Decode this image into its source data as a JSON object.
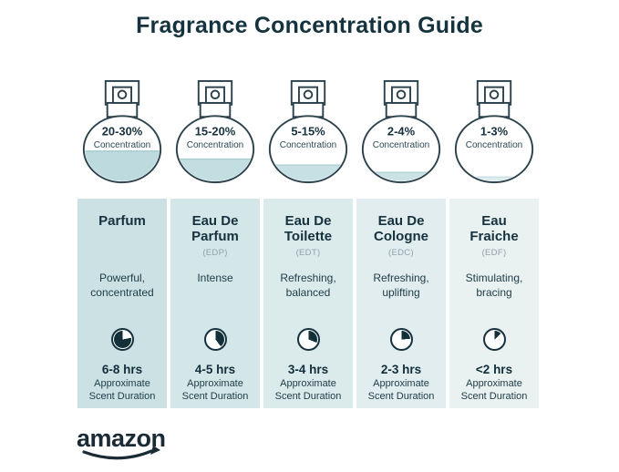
{
  "title": "Fragrance Concentration Guide",
  "concentration_label": "Concentration",
  "brand": {
    "logo_text": "amazon"
  },
  "colors": {
    "title_text": "#15333f",
    "heading_text": "#16323e",
    "abbr_text": "#90a2a9",
    "bottle_outline": "#2c424d",
    "clock_fill": "#122f3a",
    "background": "#ffffff",
    "logo_text": "#1b2b36"
  },
  "columns": [
    {
      "name": "Parfum",
      "abbr": "",
      "description": "Powerful, concentrated",
      "concentration": "20-30%",
      "duration": "6-8 hrs",
      "duration_caption": "Approximate Scent Duration",
      "fill_percent": 48,
      "liquid_color": "#bddbdf",
      "surface_color": "#a6cbd1",
      "column_bg": "#cbe1e4",
      "clock_filled_start": 22,
      "clock_filled_end": 100
    },
    {
      "name": "Eau De Parfum",
      "abbr": "(EDP)",
      "description": "Intense",
      "concentration": "15-20%",
      "duration": "4-5 hrs",
      "duration_caption": "Approximate Scent Duration",
      "fill_percent": 36,
      "liquid_color": "#c2dee1",
      "surface_color": "#abced3",
      "column_bg": "#d3e6e8",
      "clock_filled_start": 0,
      "clock_filled_end": 40
    },
    {
      "name": "Eau De Toilette",
      "abbr": "(EDT)",
      "description": "Refreshing, balanced",
      "concentration": "5-15%",
      "duration": "3-4 hrs",
      "duration_caption": "Approximate Scent Duration",
      "fill_percent": 27,
      "liquid_color": "#c6e0e3",
      "surface_color": "#b0d1d6",
      "column_bg": "#dbeaeb",
      "clock_filled_start": 0,
      "clock_filled_end": 31
    },
    {
      "name": "Eau De Cologne",
      "abbr": "(EDC)",
      "description": "Refreshing, uplifting",
      "concentration": "2-4%",
      "duration": "2-3 hrs",
      "duration_caption": "Approximate Scent Duration",
      "fill_percent": 16,
      "liquid_color": "#cbe2e5",
      "surface_color": "#b6d4d9",
      "column_bg": "#e1edee",
      "clock_filled_start": 0,
      "clock_filled_end": 24
    },
    {
      "name": "Eau Fraiche",
      "abbr": "(EDF)",
      "description": "Stimulating, bracing",
      "concentration": "1-3%",
      "duration": "<2 hrs",
      "duration_caption": "Approximate Scent Duration",
      "fill_percent": 9,
      "liquid_color": "#dfecee",
      "surface_color": "#c9dfe3",
      "column_bg": "#e9f1f1",
      "clock_filled_start": 0,
      "clock_filled_end": 13
    }
  ]
}
